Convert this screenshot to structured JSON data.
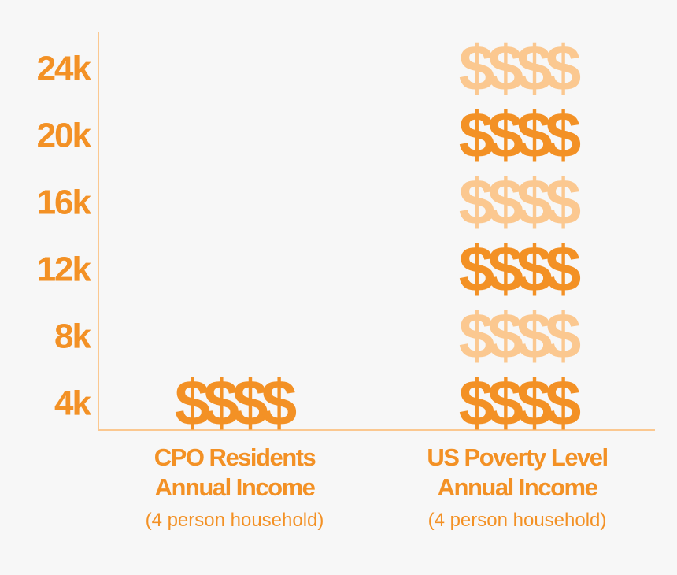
{
  "colors": {
    "primary": "#f39125",
    "light": "#fbc890",
    "axis": "#fbc890",
    "background": "#f7f7f7"
  },
  "chart_data": {
    "type": "bar",
    "title": "",
    "xlabel": "",
    "ylabel": "",
    "y_tick_labels": [
      "4k",
      "8k",
      "12k",
      "16k",
      "20k",
      "24k"
    ],
    "y_tick_values": [
      4000,
      8000,
      12000,
      16000,
      20000,
      24000
    ],
    "ylim": [
      2000,
      26000
    ],
    "bar_symbol": "$$$$",
    "categories": [
      {
        "name": "CPO Residents\nAnnual Income",
        "subtitle": "(4 person household)"
      },
      {
        "name": "US Poverty Level\nAnnual Income",
        "subtitle": "(4 person household)"
      }
    ],
    "values": [
      4000,
      24000
    ],
    "grid": false,
    "legend": "none"
  }
}
